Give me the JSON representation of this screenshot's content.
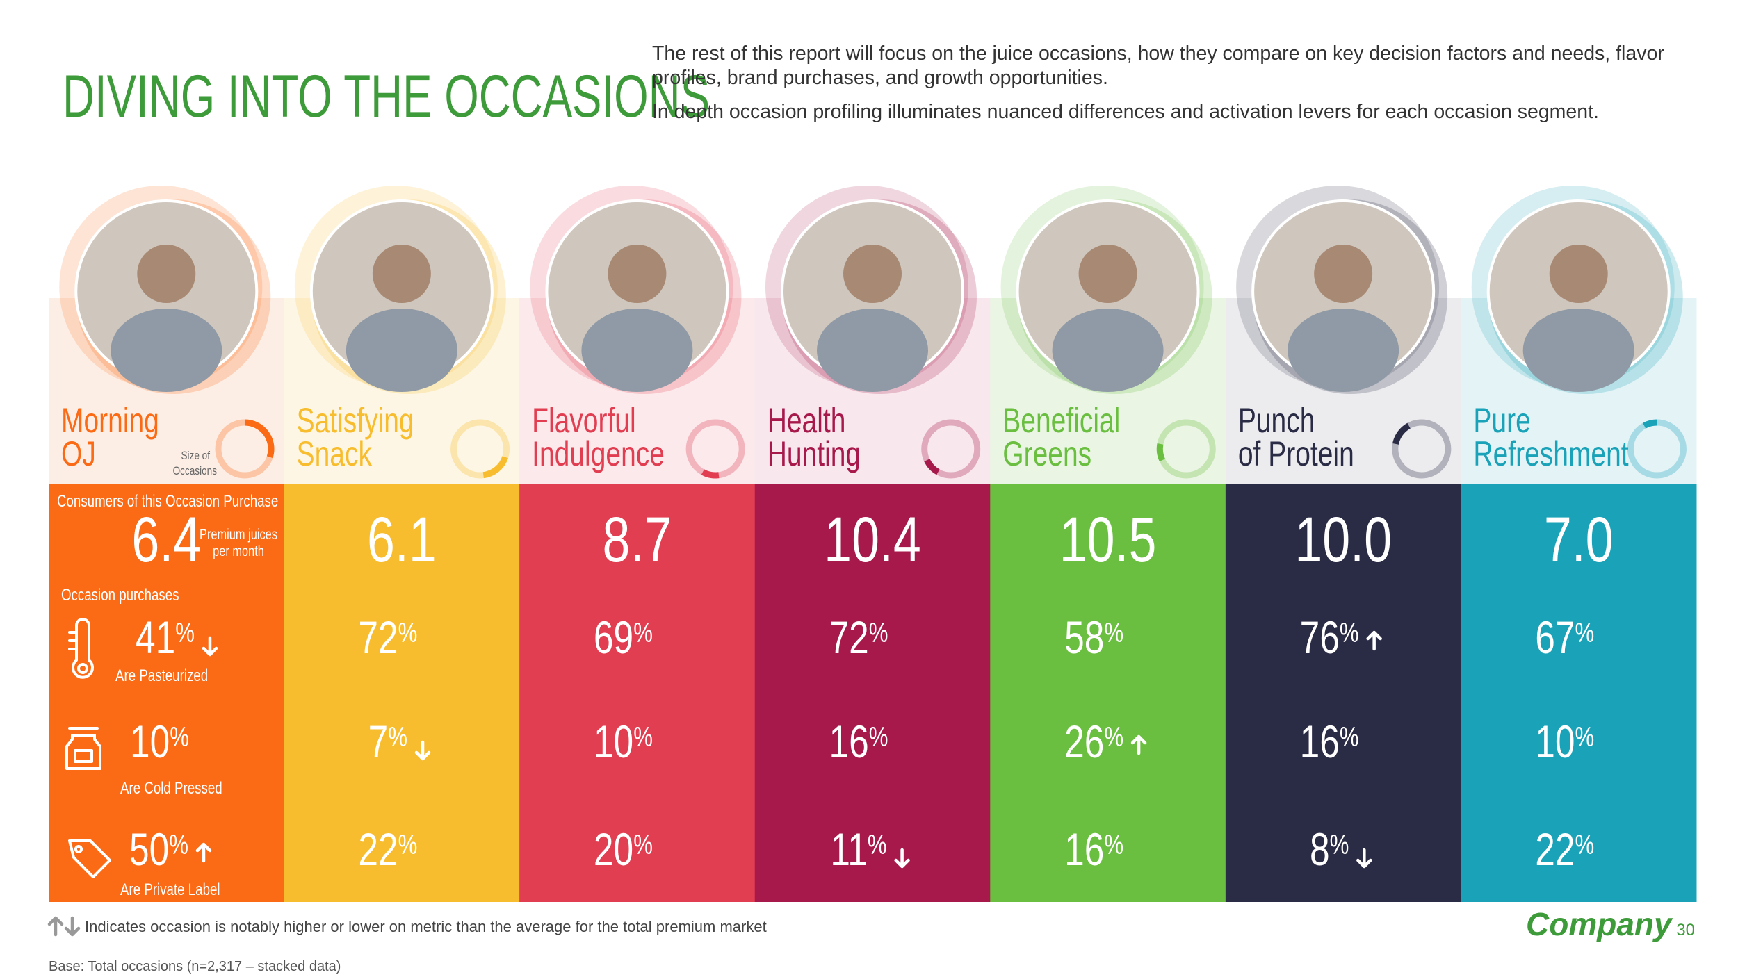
{
  "title": "DIVING INTO THE OCCASIONS",
  "intro": [
    "The rest of this report will focus on the juice occasions, how they compare on key decision factors and needs, flavor profiles, brand purchases, and growth opportunities.",
    "In depth occasion profiling illuminates nuanced differences and activation levers for each occasion segment."
  ],
  "size_label": [
    "Size of",
    "Occasions"
  ],
  "purchase_label": "Consumers of this Occasion Purchase",
  "per_month_lines": [
    "Premium juices",
    "per month"
  ],
  "occasion_purchases_label": "Occasion purchases",
  "metric_labels": [
    "Are Pasteurized",
    "Are Cold Pressed",
    "Are Private Label"
  ],
  "columns": [
    {
      "name_lines": [
        "Morning",
        "OJ"
      ],
      "color": "#fb6a14",
      "light": "#fdeee5",
      "size_share": 30,
      "purchases": "6.4",
      "metrics": [
        {
          "value": "41",
          "unit": "%",
          "arrow": "down"
        },
        {
          "value": "10",
          "unit": "%"
        },
        {
          "value": "50",
          "unit": "%",
          "arrow": "up"
        }
      ]
    },
    {
      "name_lines": [
        "Satisfying",
        "Snack"
      ],
      "color": "#f7bd2e",
      "light": "#fdf6e4",
      "size_share": 18,
      "purchases": "6.1",
      "metrics": [
        {
          "value": "72",
          "unit": "%"
        },
        {
          "value": "7",
          "unit": "%",
          "arrow": "down"
        },
        {
          "value": "22",
          "unit": "%"
        }
      ]
    },
    {
      "name_lines": [
        "Flavorful",
        "Indulgence"
      ],
      "color": "#e23e52",
      "light": "#fbe9eb",
      "size_share": 10,
      "purchases": "8.7",
      "metrics": [
        {
          "value": "69",
          "unit": "%"
        },
        {
          "value": "10",
          "unit": "%"
        },
        {
          "value": "20",
          "unit": "%"
        }
      ]
    },
    {
      "name_lines": [
        "Health",
        "Hunting"
      ],
      "color": "#a8194b",
      "light": "#f8e8ed",
      "size_share": 10,
      "purchases": "10.4",
      "metrics": [
        {
          "value": "72",
          "unit": "%"
        },
        {
          "value": "16",
          "unit": "%"
        },
        {
          "value": "11",
          "unit": "%",
          "arrow": "down"
        }
      ]
    },
    {
      "name_lines": [
        "Beneficial",
        "Greens"
      ],
      "color": "#6abf40",
      "light": "#ebf5e4",
      "size_share": 10,
      "purchases": "10.5",
      "metrics": [
        {
          "value": "58",
          "unit": "%"
        },
        {
          "value": "26",
          "unit": "%",
          "arrow": "up"
        },
        {
          "value": "16",
          "unit": "%"
        }
      ]
    },
    {
      "name_lines": [
        "Punch",
        "of Protein"
      ],
      "color": "#2a2b45",
      "light": "#ececef",
      "size_share": 14,
      "purchases": "10.0",
      "metrics": [
        {
          "value": "76",
          "unit": "%",
          "arrow": "up"
        },
        {
          "value": "16",
          "unit": "%"
        },
        {
          "value": "8",
          "unit": "%",
          "arrow": "down"
        }
      ]
    },
    {
      "name_lines": [
        "Pure",
        "Refreshment"
      ],
      "color": "#1aa3b8",
      "light": "#e3f3f6",
      "size_share": 8,
      "purchases": "7.0",
      "metrics": [
        {
          "value": "67",
          "unit": "%"
        },
        {
          "value": "10",
          "unit": "%"
        },
        {
          "value": "22",
          "unit": "%"
        }
      ]
    }
  ],
  "footnote": "Indicates occasion is notably higher or lower on metric than the average for the total premium market",
  "base": "Base: Total occasions (n=2,317 – stacked data)",
  "company": "Company",
  "page_number": "30"
}
